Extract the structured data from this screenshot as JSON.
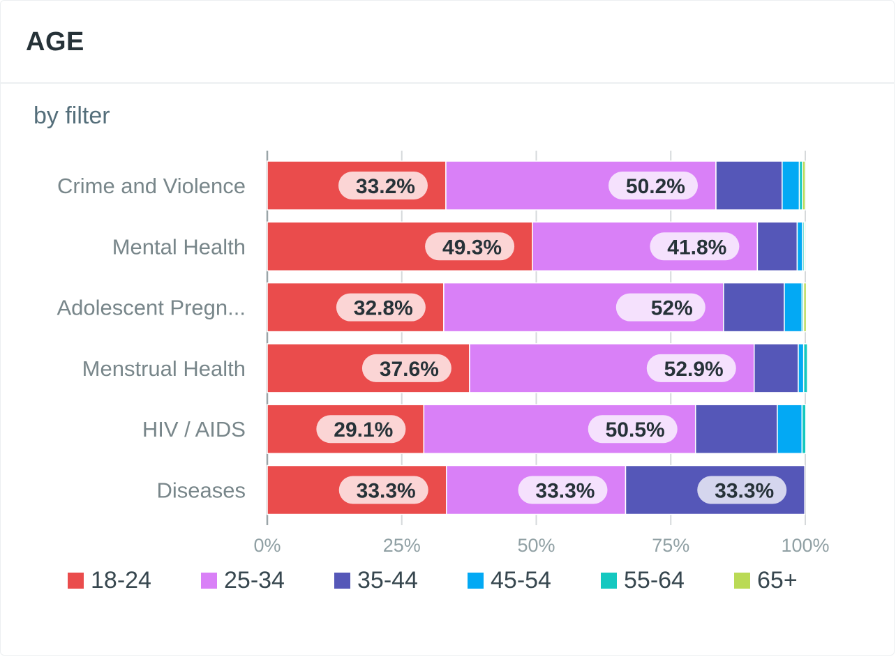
{
  "card": {
    "title": "AGE",
    "subtitle": "by filter"
  },
  "chart_data": {
    "type": "bar",
    "orientation": "horizontal",
    "stacked": true,
    "normalized": true,
    "title": "AGE",
    "subtitle": "by filter",
    "xlabel": "",
    "ylabel": "",
    "xlim": [
      0,
      100
    ],
    "grid": true,
    "legend_position": "bottom",
    "x_ticks": [
      "0%",
      "25%",
      "50%",
      "75%",
      "100%"
    ],
    "categories": [
      "Crime and Violence",
      "Mental Health",
      "Adolescent Pregn...",
      "Menstrual Health",
      "HIV / AIDS",
      "Diseases"
    ],
    "series": [
      {
        "name": "18-24",
        "color": "#ea4c4c",
        "pill_color": "#fbd5d5",
        "values": [
          33.2,
          49.3,
          32.8,
          37.6,
          29.1,
          33.3
        ],
        "labels": [
          "33.2%",
          "49.3%",
          "32.8%",
          "37.6%",
          "29.1%",
          "33.3%"
        ]
      },
      {
        "name": "25-34",
        "color": "#d980f7",
        "pill_color": "#f5e1fd",
        "values": [
          50.2,
          41.8,
          52.0,
          52.9,
          50.5,
          33.3
        ],
        "labels": [
          "50.2%",
          "41.8%",
          "52%",
          "52.9%",
          "50.5%",
          "33.3%"
        ]
      },
      {
        "name": "35-44",
        "color": "#5557b8",
        "pill_color": "#d5d6ee",
        "values": [
          12.3,
          7.4,
          11.3,
          8.2,
          15.2,
          33.3
        ],
        "labels": [
          "",
          "",
          "",
          "",
          "",
          "33.3%"
        ]
      },
      {
        "name": "45-54",
        "color": "#03a9f4",
        "pill_color": "#c9ecfd",
        "values": [
          3.2,
          1.0,
          3.3,
          1.0,
          4.6,
          0
        ],
        "labels": [
          "",
          "",
          "",
          "",
          "",
          ""
        ]
      },
      {
        "name": "55-64",
        "color": "#14c8c0",
        "pill_color": "#c8f2f0",
        "values": [
          0.6,
          0.3,
          0.3,
          0.7,
          0.7,
          0
        ],
        "labels": [
          "",
          "",
          "",
          "",
          "",
          ""
        ]
      },
      {
        "name": "65+",
        "color": "#bada55",
        "pill_color": "#eef6d4",
        "values": [
          0.5,
          0.2,
          0.5,
          0,
          0,
          0
        ],
        "labels": [
          "",
          "",
          "",
          "",
          "",
          ""
        ]
      }
    ]
  }
}
